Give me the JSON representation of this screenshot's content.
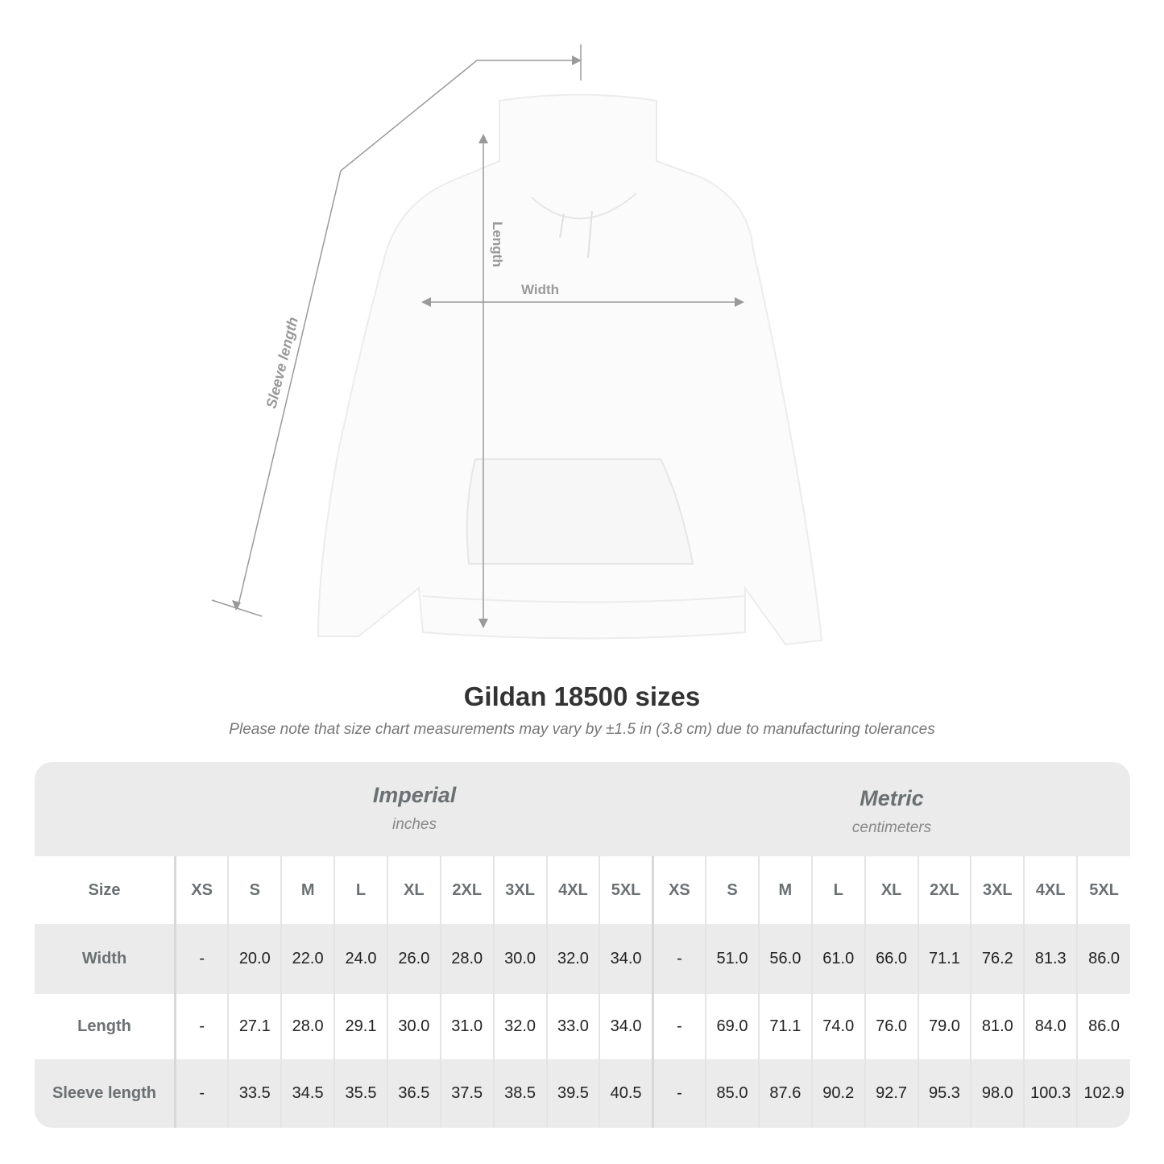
{
  "illustration": {
    "labels": {
      "length": "Length",
      "width": "Width",
      "sleeve": "Sleeve length"
    },
    "line_color": "#9a9a9a"
  },
  "title": "Gildan 18500 sizes",
  "subtitle": "Please note that size chart measurements may vary by ±1.5 in (3.8 cm) due to manufacturing tolerances",
  "systems": {
    "imperial": {
      "name": "Imperial",
      "unit": "inches"
    },
    "metric": {
      "name": "Metric",
      "unit": "centimeters"
    }
  },
  "table": {
    "size_label": "Size",
    "sizes": [
      "XS",
      "S",
      "M",
      "L",
      "XL",
      "2XL",
      "3XL",
      "4XL",
      "5XL"
    ],
    "rows": [
      {
        "label": "Width",
        "imperial": [
          "-",
          "20.0",
          "22.0",
          "24.0",
          "26.0",
          "28.0",
          "30.0",
          "32.0",
          "34.0"
        ],
        "metric": [
          "-",
          "51.0",
          "56.0",
          "61.0",
          "66.0",
          "71.1",
          "76.2",
          "81.3",
          "86.0"
        ]
      },
      {
        "label": "Length",
        "imperial": [
          "-",
          "27.1",
          "28.0",
          "29.1",
          "30.0",
          "31.0",
          "32.0",
          "33.0",
          "34.0"
        ],
        "metric": [
          "-",
          "69.0",
          "71.1",
          "74.0",
          "76.0",
          "79.0",
          "81.0",
          "84.0",
          "86.0"
        ]
      },
      {
        "label": "Sleeve length",
        "imperial": [
          "-",
          "33.5",
          "34.5",
          "35.5",
          "36.5",
          "37.5",
          "38.5",
          "39.5",
          "40.5"
        ],
        "metric": [
          "-",
          "85.0",
          "87.6",
          "90.2",
          "92.7",
          "95.3",
          "98.0",
          "100.3",
          "102.9"
        ]
      }
    ]
  }
}
